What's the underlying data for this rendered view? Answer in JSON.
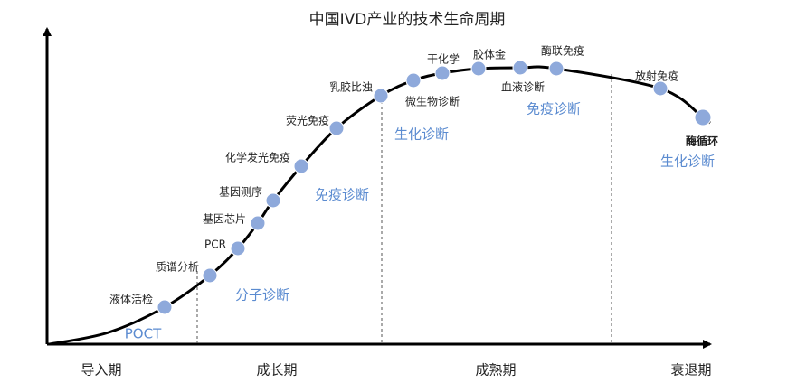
{
  "title": "中国IVD产业的技术生命周期",
  "stages": [
    "导入期",
    "成长期",
    "成熟期",
    "衰退期"
  ],
  "nodes": [
    {
      "label": "液体活检"
    },
    {
      "label": "质谱分析"
    },
    {
      "label": "PCR"
    },
    {
      "label": "基因芯片"
    },
    {
      "label": "基因测序"
    },
    {
      "label": "化学发光免疫"
    },
    {
      "label": "荧光免疫"
    },
    {
      "label": "乳胶比浊"
    },
    {
      "label": "微生物诊断"
    },
    {
      "label": "干化学"
    },
    {
      "label": "胶体金"
    },
    {
      "label": "血液诊断"
    },
    {
      "label": "酶联免疫"
    },
    {
      "label": "放射免疫"
    },
    {
      "label": "酶循环"
    }
  ],
  "groups": [
    "POCT",
    "分子诊断",
    "免疫诊断",
    "生化诊断",
    "免疫诊断",
    "生化诊断"
  ]
}
